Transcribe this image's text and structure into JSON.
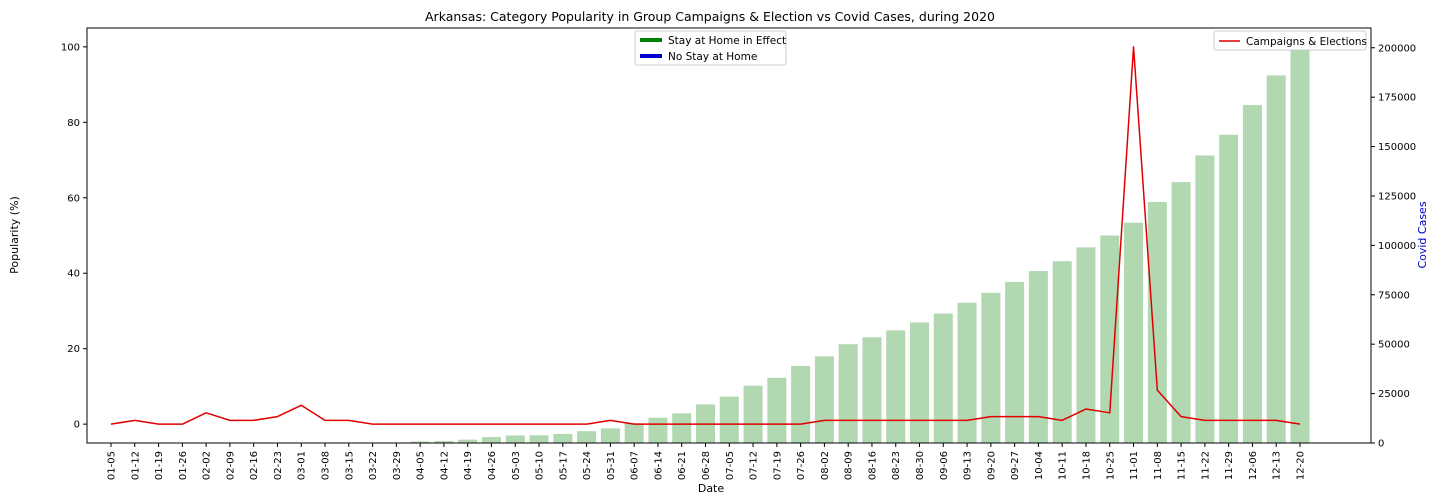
{
  "chart_data": {
    "type": "bar+line",
    "title": "Arkansas: Category Popularity in Group Campaigns & Election vs Covid Cases, during 2020",
    "xlabel": "Date",
    "ylabel_left": "Popularity (%)",
    "ylabel_right": "Covid Cases",
    "ylim_left": [
      -5,
      105
    ],
    "ylim_right": [
      0,
      210000
    ],
    "yticks_left": [
      0,
      20,
      40,
      60,
      80,
      100
    ],
    "yticks_right": [
      0,
      25000,
      50000,
      75000,
      100000,
      125000,
      150000,
      175000,
      200000
    ],
    "categories": [
      "01-05",
      "01-12",
      "01-19",
      "01-26",
      "02-02",
      "02-09",
      "02-16",
      "02-23",
      "03-01",
      "03-08",
      "03-15",
      "03-22",
      "03-29",
      "04-05",
      "04-12",
      "04-19",
      "04-26",
      "05-03",
      "05-10",
      "05-17",
      "05-24",
      "05-31",
      "06-07",
      "06-14",
      "06-21",
      "06-28",
      "07-05",
      "07-12",
      "07-19",
      "07-26",
      "08-02",
      "08-09",
      "08-16",
      "08-23",
      "08-30",
      "09-06",
      "09-13",
      "09-20",
      "09-27",
      "10-04",
      "10-11",
      "10-18",
      "10-25",
      "11-01",
      "11-08",
      "11-15",
      "11-22",
      "11-29",
      "12-06",
      "12-13",
      "12-20"
    ],
    "series": [
      {
        "name": "Campaigns & Elections",
        "type": "line",
        "axis": "left",
        "color": "#e00000",
        "values": [
          0,
          1,
          0,
          0,
          3,
          1,
          1,
          2,
          5,
          1,
          1,
          0,
          0,
          0,
          0,
          0,
          0,
          0,
          0,
          0,
          0,
          1,
          0,
          0,
          0,
          0,
          0,
          0,
          0,
          0,
          1,
          1,
          1,
          1,
          1,
          1,
          1,
          2,
          2,
          2,
          1,
          4,
          3,
          100,
          9,
          2,
          1,
          1,
          1,
          1,
          0
        ]
      },
      {
        "type": "bar",
        "axis": "right",
        "color": "#b2d8b2",
        "values": [
          0,
          0,
          0,
          0,
          0,
          0,
          0,
          0,
          0,
          0,
          0,
          0,
          100,
          750,
          1000,
          1700,
          3000,
          3800,
          3900,
          4600,
          6000,
          7400,
          10000,
          12800,
          15000,
          19500,
          23500,
          29000,
          33000,
          39000,
          43800,
          50000,
          53500,
          57000,
          61000,
          65500,
          71000,
          76000,
          81500,
          87000,
          92000,
          99000,
          105000,
          111500,
          122000,
          132000,
          145500,
          156000,
          171000,
          186000,
          202000
        ]
      }
    ],
    "legend": {
      "center": [
        {
          "label": "Stay at Home in Effect",
          "color": "#008000"
        },
        {
          "label": "No Stay at Home",
          "color": "#0000cc"
        }
      ],
      "right": [
        {
          "label": "Campaigns & Elections",
          "color": "#e00000"
        }
      ]
    }
  }
}
